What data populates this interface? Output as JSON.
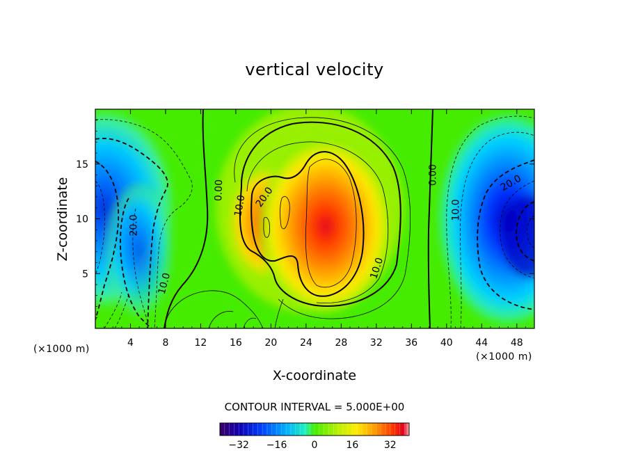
{
  "chart_data": {
    "type": "heatmap",
    "title": "vertical velocity",
    "xlabel": "X-coordinate",
    "ylabel": "Z-coordinate",
    "x_unit": "(×1000 m)",
    "y_unit": "(×1000 m)",
    "xlim": [
      0,
      50
    ],
    "ylim": [
      0,
      20
    ],
    "x_ticks": [
      4,
      8,
      12,
      16,
      20,
      24,
      28,
      32,
      36,
      40,
      44,
      48
    ],
    "y_ticks": [
      5,
      10,
      15
    ],
    "contour_interval_text": "CONTOUR INTERVAL = 5.000E+00",
    "colorbar_ticks": [
      -32,
      -16,
      0,
      16,
      32
    ],
    "colorbar_range": [
      -40,
      40
    ],
    "contour_labels": [
      {
        "text": "20.0",
        "x": 4.3,
        "y": 9.4,
        "rotation": -90
      },
      {
        "text": "10.0",
        "x": 7.8,
        "y": 4.1,
        "rotation": -75
      },
      {
        "text": "0.00",
        "x": 14.0,
        "y": 12.6,
        "rotation": -88
      },
      {
        "text": "10.0",
        "x": 16.4,
        "y": 11.2,
        "rotation": -80
      },
      {
        "text": "20.0",
        "x": 19.2,
        "y": 12.0,
        "rotation": -55
      },
      {
        "text": "10.0",
        "x": 32.0,
        "y": 5.5,
        "rotation": -72
      },
      {
        "text": "0.00",
        "x": 38.4,
        "y": 14.0,
        "rotation": -90
      },
      {
        "text": "10.0",
        "x": 41.0,
        "y": 10.8,
        "rotation": -90
      },
      {
        "text": "20.0",
        "x": 47.3,
        "y": 13.3,
        "rotation": -30
      }
    ],
    "field_centers": [
      {
        "x": 26,
        "y": 8.5,
        "value": 36
      },
      {
        "x": 20,
        "y": 10,
        "value": 25
      },
      {
        "x": 48.8,
        "y": 8.5,
        "value": -38
      },
      {
        "x": 0.5,
        "y": 10,
        "value": -30
      },
      {
        "x": 5,
        "y": 8,
        "value": -18
      }
    ]
  },
  "colors": {
    "scale": [
      "#3d0066",
      "#0000d8",
      "#0070ff",
      "#00c8ff",
      "#3cf08c",
      "#46ec00",
      "#b4f000",
      "#ffeb00",
      "#ff9900",
      "#ff3a00",
      "#e00020",
      "#ffb0b0"
    ]
  }
}
